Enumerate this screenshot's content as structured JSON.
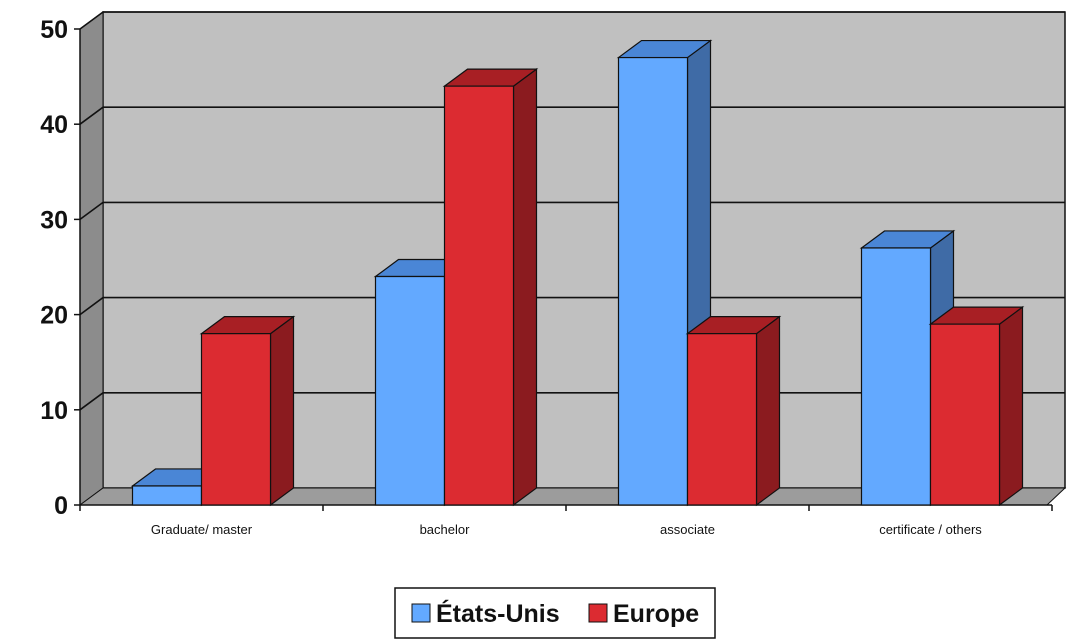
{
  "chart_data": {
    "type": "bar",
    "categories": [
      "Graduate/ master",
      "bachelor",
      "associate",
      "certificate / others"
    ],
    "series": [
      {
        "name": "États-Unis",
        "values": [
          2,
          24,
          47,
          27
        ]
      },
      {
        "name": "Europe",
        "values": [
          18,
          44,
          18,
          19
        ]
      }
    ],
    "ylim": [
      0,
      50
    ],
    "yticks": [
      "0",
      "10",
      "20",
      "30",
      "40",
      "50"
    ],
    "xlabel": "",
    "ylabel": "",
    "title": "",
    "grid": true,
    "legend_position": "bottom-center",
    "colors": {
      "series": [
        "#63a9ff",
        "#dc2b31"
      ],
      "series_top": [
        "#4a86d6",
        "#a81f24"
      ],
      "series_side": [
        "#3f6ba6",
        "#8b1b1f"
      ],
      "wall": "#c0c0c0",
      "side_wall": "#8c8c8c",
      "floor": "#9c9c9c",
      "gridline": "#111111"
    }
  }
}
